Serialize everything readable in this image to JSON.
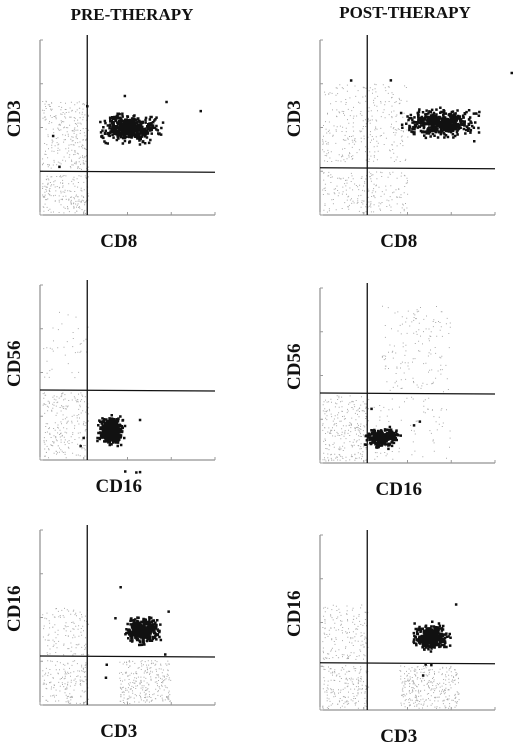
{
  "columns": [
    "PRE-THERAPY",
    "POST-THERAPY"
  ],
  "panels": [
    {
      "x_label": "CD8",
      "y_label": "CD3"
    },
    {
      "x_label": "CD8",
      "y_label": "CD3"
    },
    {
      "x_label": "CD16",
      "y_label": "CD56"
    },
    {
      "x_label": "CD16",
      "y_label": "CD56"
    },
    {
      "x_label": "CD3",
      "y_label": "CD16"
    },
    {
      "x_label": "CD3",
      "y_label": "CD16"
    }
  ]
}
